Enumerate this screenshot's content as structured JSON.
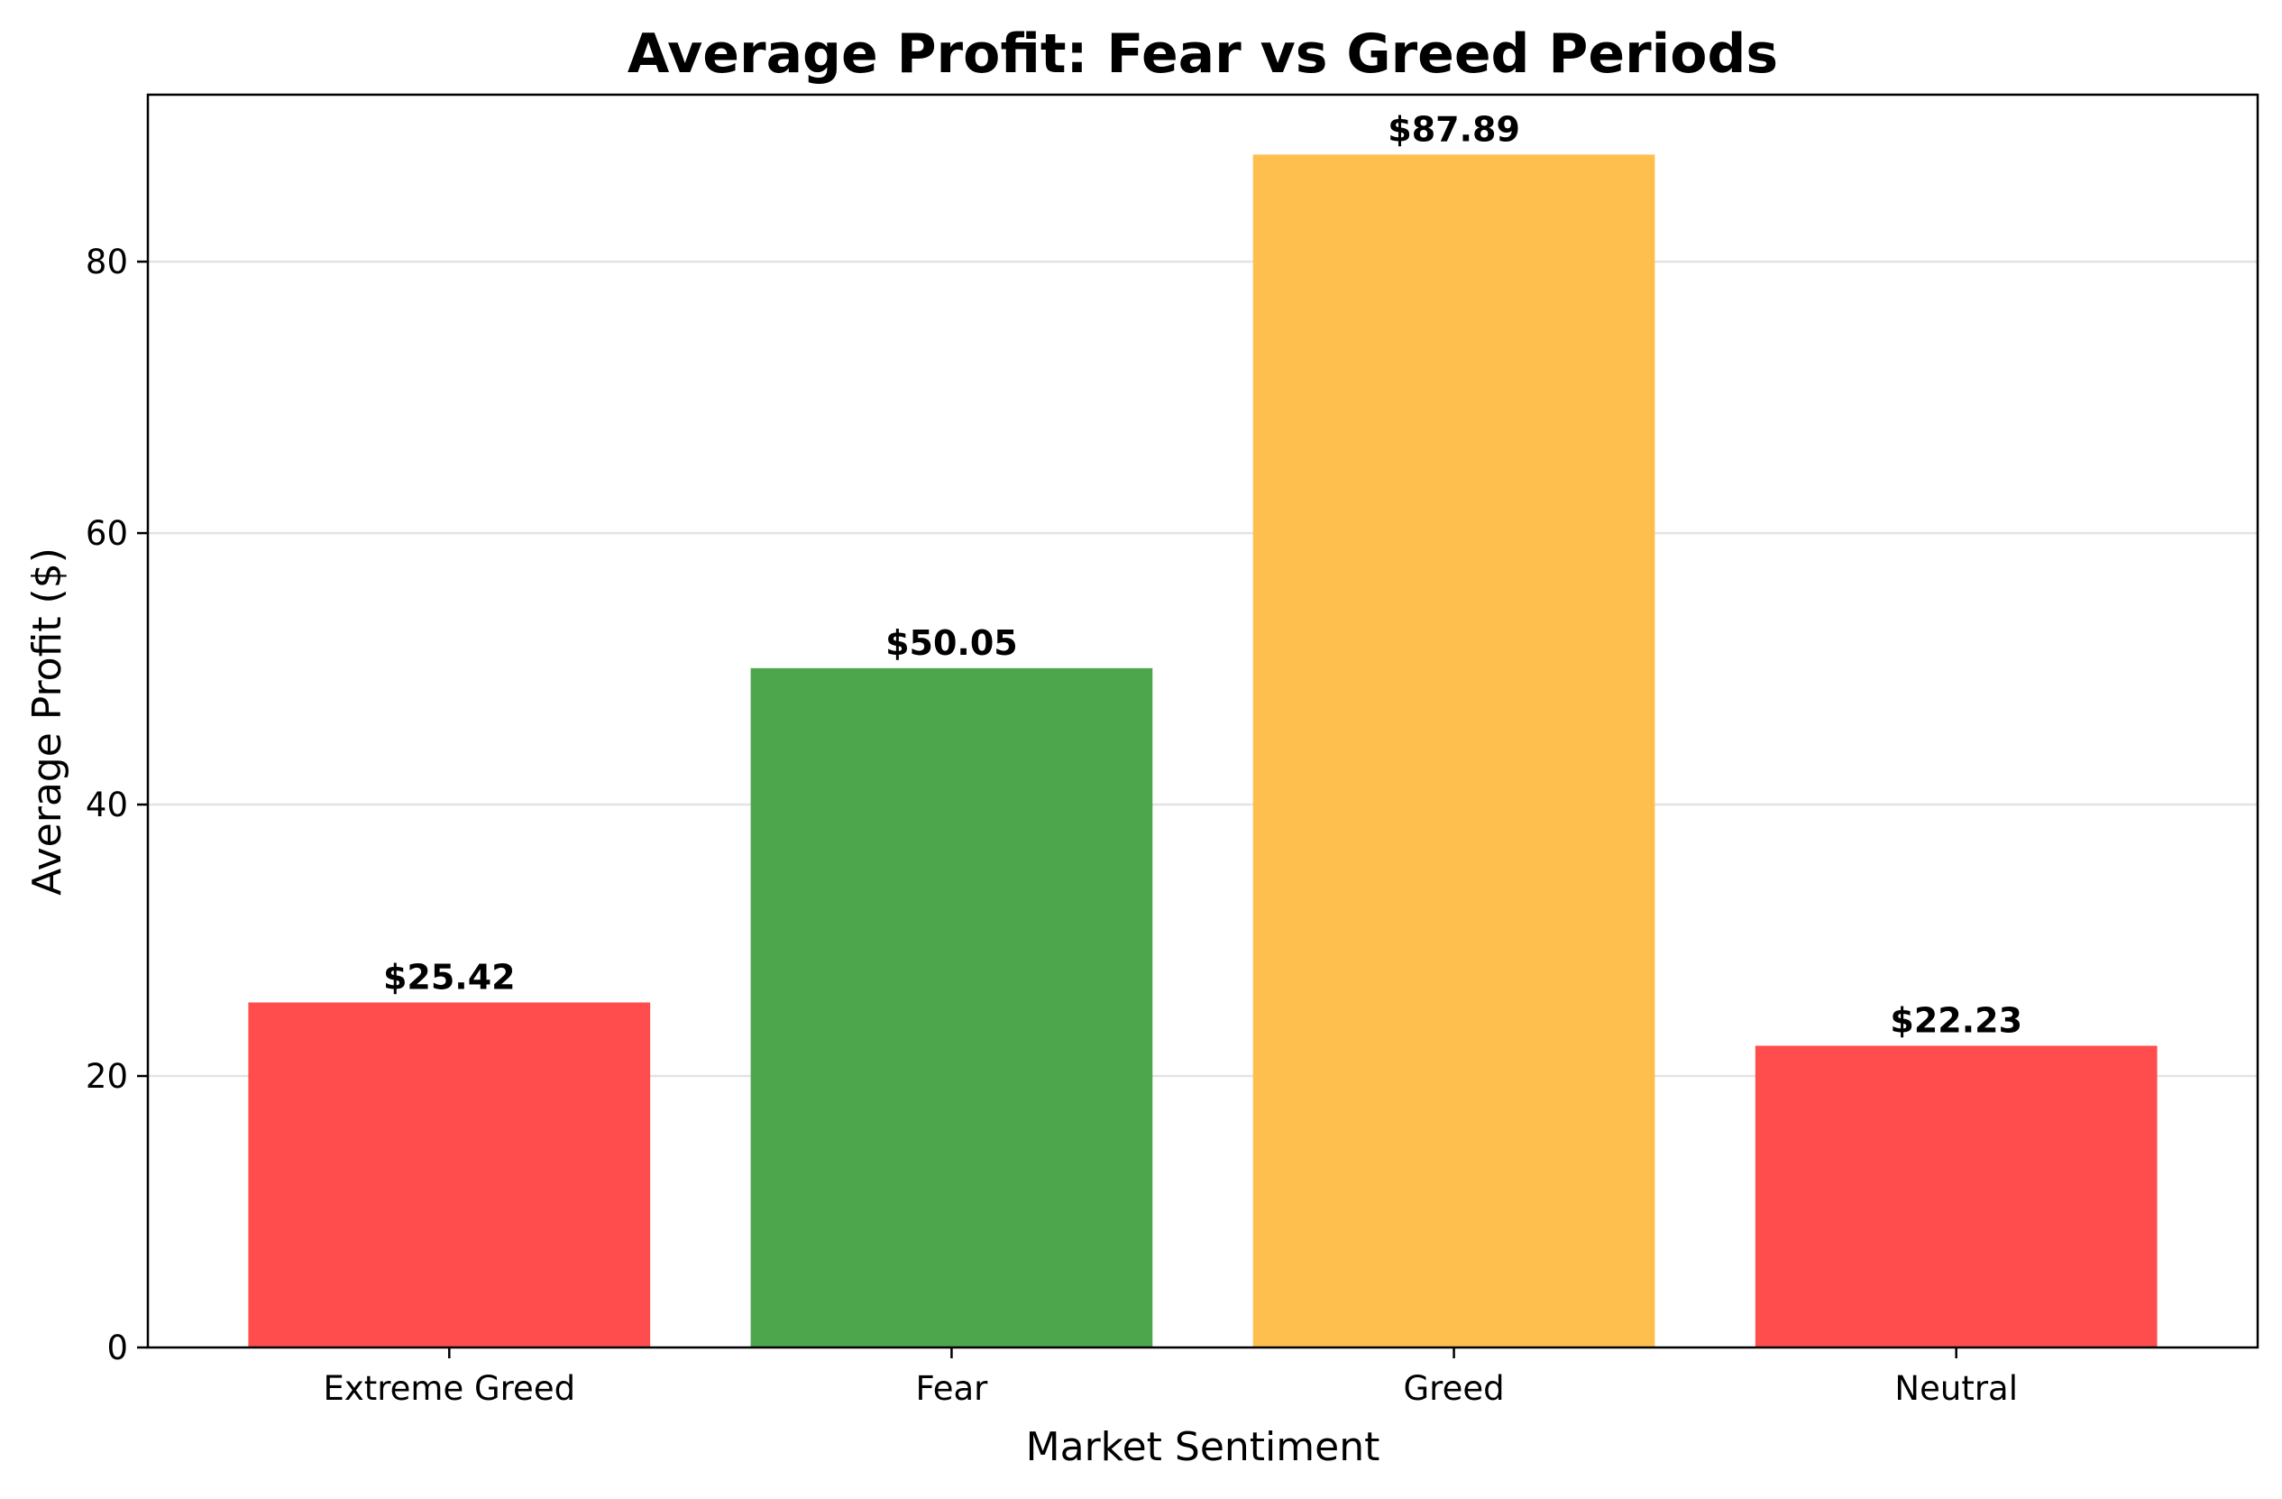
{
  "chart_data": {
    "type": "bar",
    "title": "Average Profit: Fear vs Greed Periods",
    "xlabel": "Market Sentiment",
    "ylabel": "Average Profit ($)",
    "categories": [
      "Extreme Greed",
      "Fear",
      "Greed",
      "Neutral"
    ],
    "values": [
      25.42,
      50.05,
      87.89,
      22.23
    ],
    "value_labels": [
      "$25.42",
      "$50.05",
      "$87.89",
      "$22.23"
    ],
    "colors": [
      "#ff4d4d",
      "#4ea64c",
      "#ffbf4f",
      "#ff4d4d"
    ],
    "ylim": [
      0,
      92.3
    ],
    "yticks": [
      0,
      20,
      40,
      60,
      80
    ],
    "ytick_labels": [
      "0",
      "20",
      "40",
      "60",
      "80"
    ],
    "grid": "y-axis",
    "legend": "none"
  }
}
